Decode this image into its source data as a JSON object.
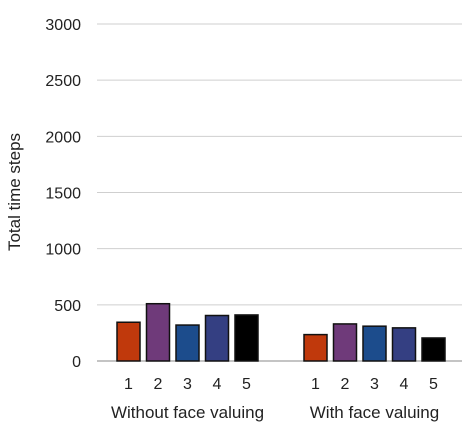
{
  "chart_data": {
    "type": "bar",
    "ylabel": "Total time steps",
    "ylim": [
      0,
      3000
    ],
    "yticks": [
      0,
      500,
      1000,
      1500,
      2000,
      2500,
      3000
    ],
    "grid": "horizontal",
    "groups": [
      {
        "label": "Without face valuing",
        "categories": [
          "1",
          "2",
          "3",
          "4",
          "5"
        ],
        "values": [
          345,
          510,
          320,
          405,
          410
        ]
      },
      {
        "label": "With face valuing",
        "categories": [
          "1",
          "2",
          "3",
          "4",
          "5"
        ],
        "values": [
          235,
          330,
          310,
          295,
          205
        ]
      }
    ],
    "colors": [
      "#c0390c",
      "#6f3a7a",
      "#1c4c8c",
      "#343f82",
      "#000000"
    ]
  }
}
